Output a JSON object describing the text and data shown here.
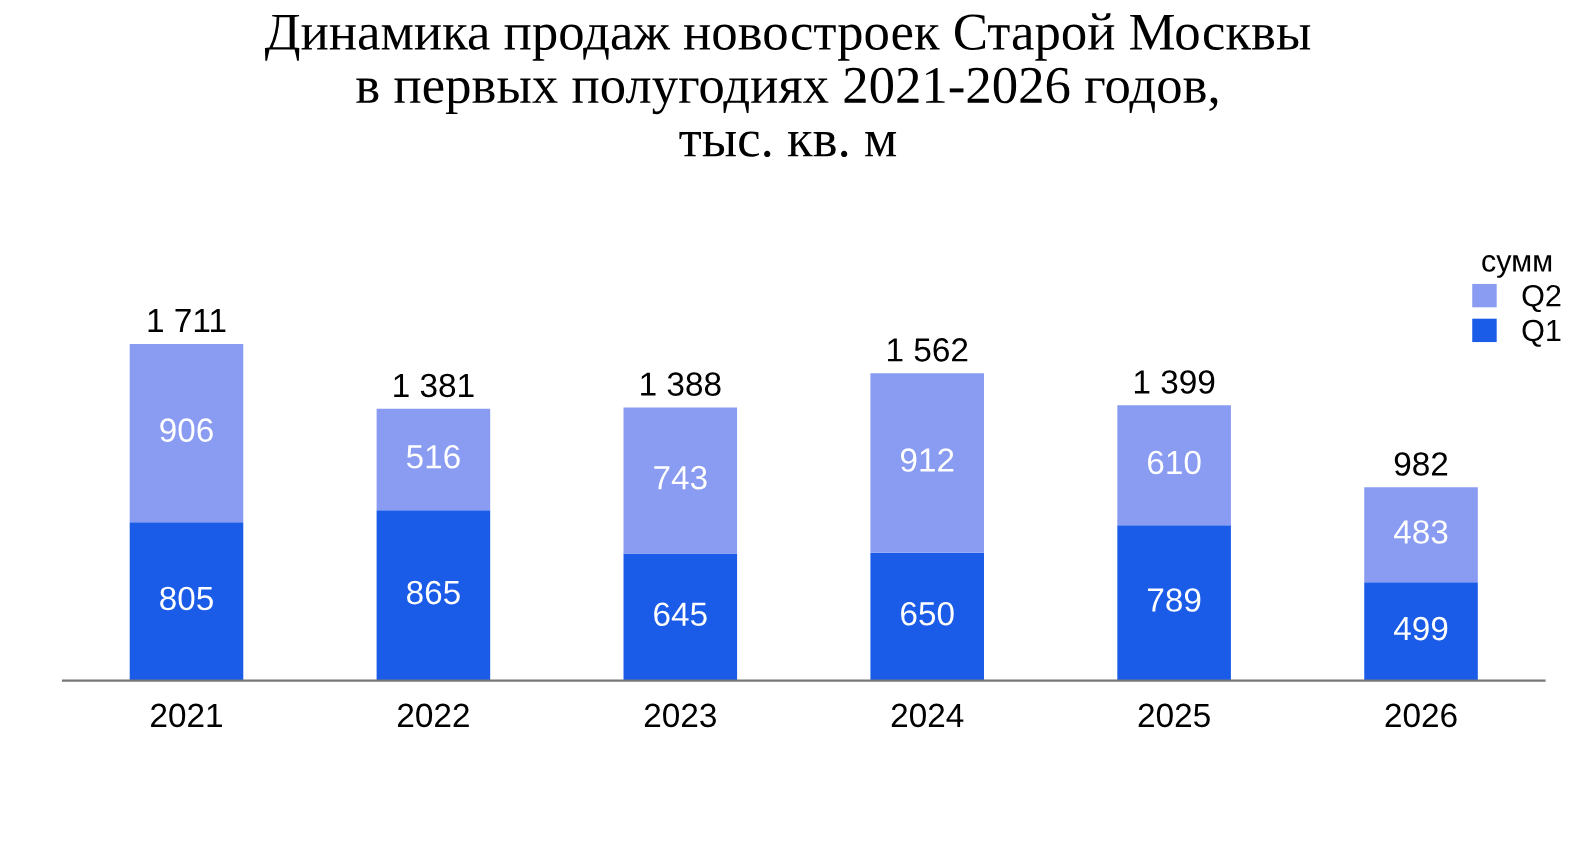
{
  "chart_data": {
    "type": "bar",
    "stacked": true,
    "title": "Динамика продаж новостроек Старой Москвы\nв первых полугодиях 2021-2026 годов,\nтыс. кв. м",
    "categories": [
      "2021",
      "2022",
      "2023",
      "2024",
      "2025",
      "2026"
    ],
    "series": [
      {
        "name": "Q1",
        "color": "#1a5ce8",
        "values": [
          805,
          865,
          645,
          650,
          789,
          499
        ]
      },
      {
        "name": "Q2",
        "color": "#8a9cf2",
        "values": [
          906,
          516,
          743,
          912,
          610,
          483
        ]
      }
    ],
    "data_labels": true,
    "totals": [
      "1 711",
      "1 381",
      "1 388",
      "1 562",
      "1 399",
      "982"
    ],
    "legend": "top right",
    "legend_title": "сумм",
    "grid": false
  }
}
